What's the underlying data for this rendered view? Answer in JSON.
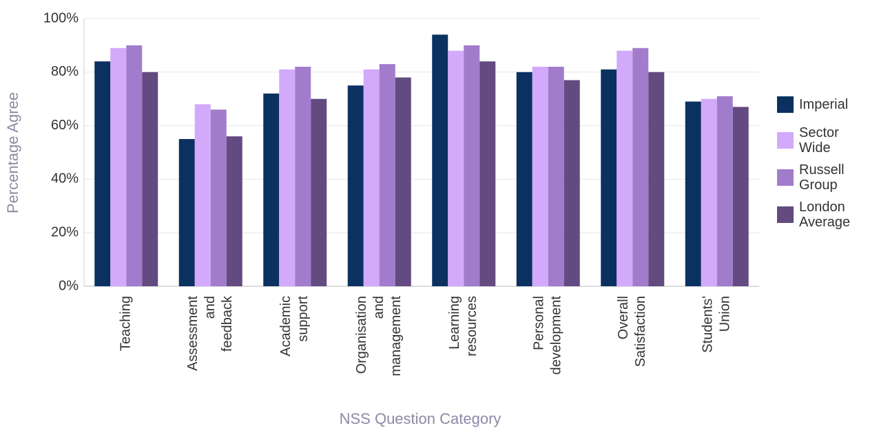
{
  "chart_data": {
    "type": "bar",
    "x_label": "NSS Question Category",
    "y_label": "Percentage Agree",
    "categories": [
      [
        "Teaching"
      ],
      [
        "Assessment",
        "and",
        "feedback"
      ],
      [
        "Academic",
        "support"
      ],
      [
        "Organisation",
        "and",
        "management"
      ],
      [
        "Learning",
        "resources"
      ],
      [
        "Personal",
        "development"
      ],
      [
        "Overall",
        "Satisfaction"
      ],
      [
        "Students'",
        "Union"
      ]
    ],
    "series": [
      {
        "name": "Imperial",
        "color": "#0b3161",
        "values": [
          84,
          55,
          72,
          75,
          94,
          80,
          81,
          69
        ]
      },
      {
        "name": "Sector Wide",
        "color": "#d3a9fb",
        "values": [
          89,
          68,
          81,
          81,
          88,
          82,
          88,
          70
        ]
      },
      {
        "name": "Russell Group",
        "color": "#a27ccc",
        "values": [
          90,
          66,
          82,
          83,
          90,
          82,
          89,
          71
        ]
      },
      {
        "name": "London Average",
        "color": "#634a80",
        "values": [
          80,
          56,
          70,
          78,
          84,
          77,
          80,
          67
        ]
      }
    ],
    "ylim": [
      0,
      100
    ],
    "yticks": [
      {
        "value": 0,
        "label": "0%"
      },
      {
        "value": 20,
        "label": "20%"
      },
      {
        "value": 40,
        "label": "40%"
      },
      {
        "value": 60,
        "label": "60%"
      },
      {
        "value": 80,
        "label": "80%"
      },
      {
        "value": 100,
        "label": "100%"
      }
    ],
    "grid": true,
    "legend": "right"
  }
}
